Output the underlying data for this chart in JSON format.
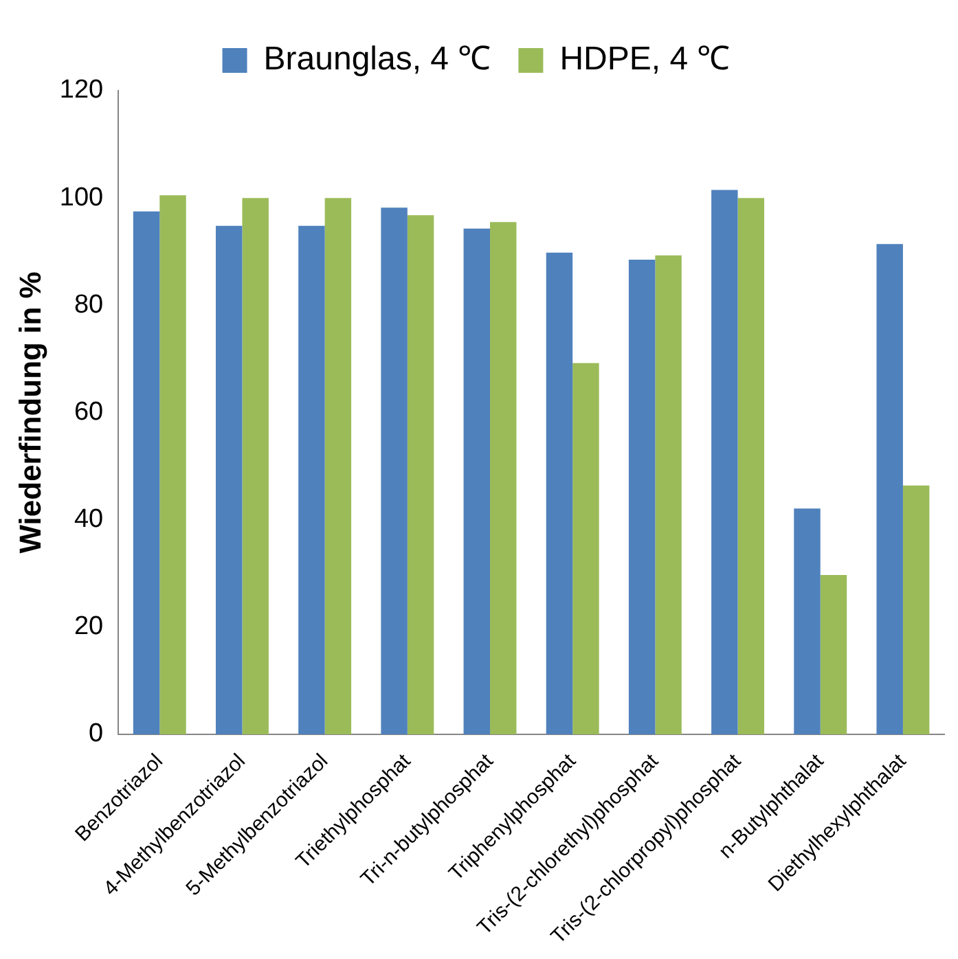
{
  "chart_data": {
    "type": "bar",
    "ylabel": "Wiederfindung in %",
    "categories": [
      "Benzotriazol",
      "4-Methylbenzotriazol",
      "5-Methylbenzotriazol",
      "Triethylphosphat",
      "Tri-n-butylphosphat",
      "Triphenylphosphat",
      "Tris-(2-chlorethyl)phosphat",
      "Tris-(2-chlorpropyl)phosphat",
      "n-Butylphthalat",
      "Diethylhexylphthalat"
    ],
    "series": [
      {
        "name": "Braunglas, 4 ℃",
        "color": "#4f81bd",
        "values": [
          97.5,
          94.8,
          94.8,
          98.2,
          94.3,
          89.8,
          88.5,
          101.5,
          42.1,
          91.4
        ]
      },
      {
        "name": "HDPE, 4 ℃",
        "color": "#9bbb59",
        "values": [
          100.5,
          100,
          100,
          96.8,
          95.5,
          69.2,
          89.3,
          100,
          29.7,
          46.4
        ]
      }
    ],
    "ylim": [
      0,
      120
    ],
    "yticks": [
      0,
      20,
      40,
      60,
      80,
      100,
      120
    ],
    "grid": false,
    "legend": "top"
  }
}
